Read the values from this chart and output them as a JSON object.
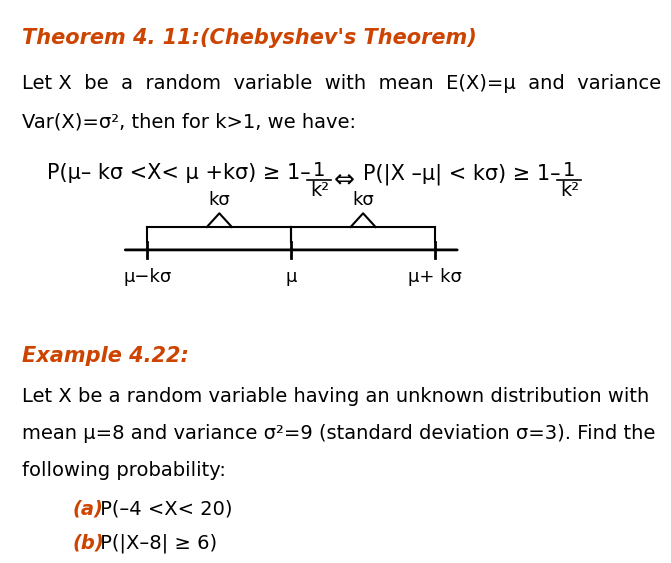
{
  "bg_color": "#ffffff",
  "title_text": "Theorem 4. 11:(Chebyshev's Theorem)",
  "title_color": "#cc4400",
  "body1_text": "Let X  be  a  random  variable  with  mean  E(X)=μ  and  variance\nVar(X)=σ², then for k>1, we have:",
  "formula1": "P(μ– kσ <X< μ +kσ) ≥ 1–",
  "formula1_frac_num": "1",
  "formula1_frac_den": "k²",
  "formula2": "P(|X –μ| < kσ) ≥ 1–",
  "formula2_frac_num": "1",
  "formula2_frac_den": "k²",
  "example_title": "Example 4.22:",
  "example_title_color": "#cc4400",
  "example_body": "Let X be a random variable having an unknown distribution with\nmean μ=8 and variance σ²=9 (standard deviation σ=3). Find the\nfollowing probability:",
  "part_a_label": "(a)",
  "part_a_text": " P(–4 <X< 20)",
  "part_b_label": "(b)",
  "part_b_text": " P(|X–8| ≥ 6)",
  "parts_color": "#cc4400",
  "font_size_title": 15,
  "font_size_body": 14,
  "font_size_formula": 14,
  "font_size_example_title": 15,
  "font_size_example_body": 14
}
